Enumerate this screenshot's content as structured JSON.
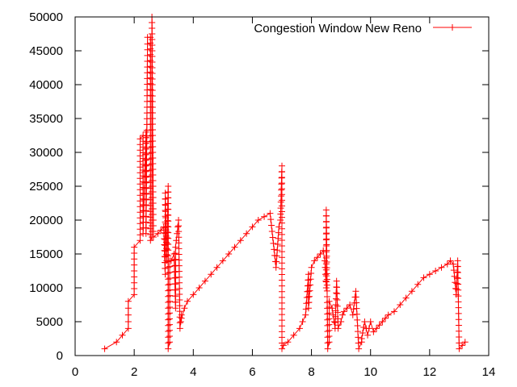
{
  "chart_data": {
    "type": "line",
    "title": "",
    "xlabel": "",
    "ylabel": "",
    "xlim": [
      0,
      14
    ],
    "ylim": [
      0,
      50000
    ],
    "xticks": [
      0,
      2,
      4,
      6,
      8,
      10,
      12,
      14
    ],
    "xtick_labels": [
      "0",
      "2",
      "4",
      "6",
      "8",
      "10",
      "12",
      "14"
    ],
    "yticks": [
      0,
      5000,
      10000,
      15000,
      20000,
      25000,
      30000,
      35000,
      40000,
      45000,
      50000
    ],
    "ytick_labels": [
      "0",
      "5000",
      "10000",
      "15000",
      "20000",
      "25000",
      "30000",
      "35000",
      "40000",
      "45000",
      "50000"
    ],
    "grid": false,
    "legend_position": "top-right",
    "series": [
      {
        "name": "Congestion Window New Reno",
        "color": "#ff0000",
        "marker": "plus",
        "x": [
          1.0,
          1.4,
          1.6,
          1.8,
          1.8,
          2.0,
          2.0,
          2.2,
          2.2,
          2.3,
          2.3,
          2.4,
          2.4,
          2.45,
          2.45,
          2.55,
          2.55,
          2.6,
          2.6,
          2.65,
          2.8,
          2.9,
          3.0,
          3.05,
          3.05,
          3.1,
          3.15,
          3.15,
          3.2,
          3.2,
          3.25,
          3.35,
          3.4,
          3.4,
          3.45,
          3.5,
          3.55,
          3.6,
          3.6,
          3.7,
          3.8,
          4.0,
          4.2,
          4.4,
          4.6,
          4.8,
          5.0,
          5.2,
          5.4,
          5.6,
          5.8,
          6.0,
          6.2,
          6.4,
          6.6,
          6.8,
          6.9,
          6.95,
          7.0,
          7.0,
          7.05,
          7.2,
          7.4,
          7.6,
          7.8,
          7.9,
          7.9,
          8.0,
          8.1,
          8.2,
          8.3,
          8.4,
          8.45,
          8.5,
          8.5,
          8.55,
          8.6,
          8.6,
          8.7,
          8.8,
          8.85,
          8.9,
          8.9,
          9.0,
          9.05,
          9.1,
          9.2,
          9.3,
          9.4,
          9.5,
          9.6,
          9.7,
          9.7,
          9.8,
          9.9,
          10.0,
          10.1,
          10.2,
          10.3,
          10.4,
          10.5,
          10.6,
          10.8,
          11.0,
          11.2,
          11.4,
          11.6,
          11.8,
          12.0,
          12.2,
          12.4,
          12.6,
          12.7,
          12.8,
          12.9,
          12.95,
          13.0,
          13.1,
          13.2
        ],
        "y": [
          1000,
          2000,
          3000,
          4000,
          8000,
          9000,
          16000,
          17000,
          32000,
          32500,
          18000,
          33000,
          18000,
          46000,
          47000,
          47000,
          17000,
          17500,
          50000,
          17500,
          18000,
          18500,
          19000,
          12000,
          24000,
          14000,
          25000,
          1000,
          2000,
          14000,
          14000,
          15000,
          7000,
          16000,
          18000,
          20000,
          4000,
          6000,
          5500,
          7000,
          8000,
          9000,
          10000,
          11000,
          12000,
          13000,
          14000,
          15000,
          16000,
          17000,
          18000,
          19000,
          20000,
          20500,
          21000,
          13000,
          19000,
          20000,
          28000,
          1000,
          1500,
          2000,
          3000,
          4000,
          6000,
          12000,
          7000,
          13000,
          14000,
          14500,
          15000,
          15500,
          14000,
          10000,
          21500,
          1000,
          2000,
          8000,
          7000,
          4000,
          11000,
          4500,
          4000,
          5000,
          6000,
          6500,
          7000,
          7500,
          6000,
          9500,
          1000,
          2000,
          2500,
          5000,
          3000,
          5000,
          3500,
          4000,
          4500,
          5000,
          5500,
          6000,
          6500,
          7500,
          8500,
          9500,
          10500,
          11500,
          12000,
          12500,
          13000,
          13500,
          14000,
          13500,
          9000,
          14000,
          1000,
          1500,
          2000
        ]
      }
    ]
  }
}
